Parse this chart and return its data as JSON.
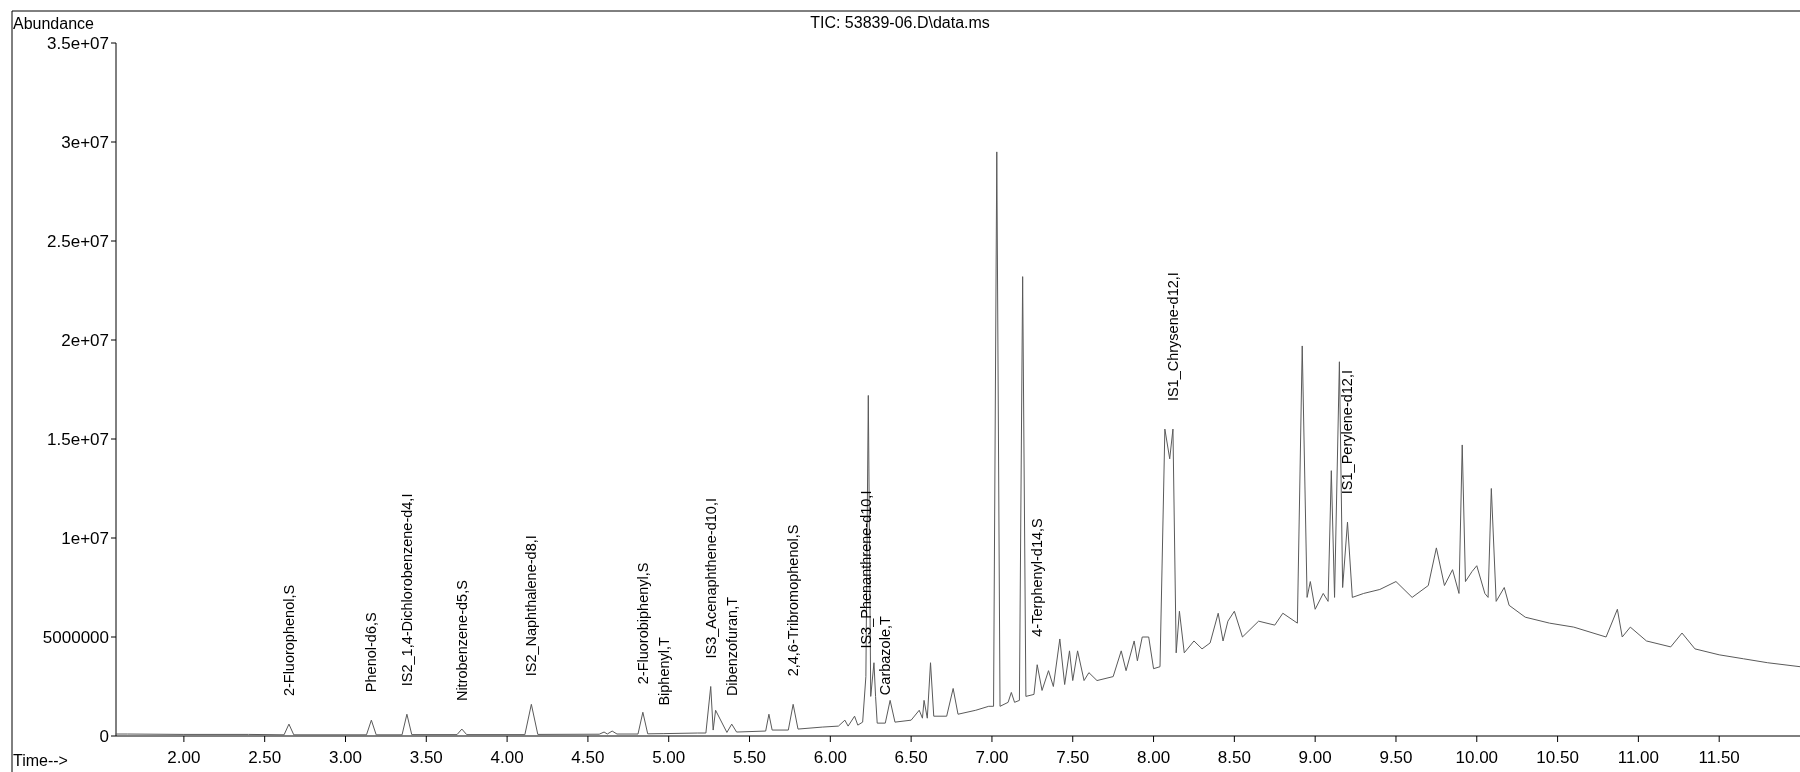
{
  "chart_data": {
    "type": "line",
    "title": "TIC: 53839-06.D\\data.ms",
    "xlabel": "Time-->",
    "ylabel": "Abundance",
    "xlim": [
      1.58,
      12.0
    ],
    "ylim": [
      0,
      35000000
    ],
    "xticks": [
      {
        "value": 2,
        "label": "2.00"
      },
      {
        "value": 2.5,
        "label": "2.50"
      },
      {
        "value": 3,
        "label": "3.00"
      },
      {
        "value": 3.5,
        "label": "3.50"
      },
      {
        "value": 4,
        "label": "4.00"
      },
      {
        "value": 4.5,
        "label": "4.50"
      },
      {
        "value": 5,
        "label": "5.00"
      },
      {
        "value": 5.5,
        "label": "5.50"
      },
      {
        "value": 6,
        "label": "6.00"
      },
      {
        "value": 6.5,
        "label": "6.50"
      },
      {
        "value": 7,
        "label": "7.00"
      },
      {
        "value": 7.5,
        "label": "7.50"
      },
      {
        "value": 8,
        "label": "8.00"
      },
      {
        "value": 8.5,
        "label": "8.50"
      },
      {
        "value": 9,
        "label": "9.00"
      },
      {
        "value": 9.5,
        "label": "9.50"
      },
      {
        "value": 10,
        "label": "10.00"
      },
      {
        "value": 10.5,
        "label": "10.50"
      },
      {
        "value": 11,
        "label": "11.00"
      },
      {
        "value": 11.5,
        "label": "11.50"
      }
    ],
    "yticks": [
      0,
      5000000,
      {
        "value": 10000000,
        "label": "1e+07"
      },
      {
        "value": 15000000,
        "label": "1.5e+07"
      },
      {
        "value": 20000000,
        "label": "2e+07"
      },
      {
        "value": 25000000,
        "label": "2.5e+07"
      },
      {
        "value": 30000000,
        "label": "3e+07"
      },
      {
        "value": 35000000,
        "label": "3.5e+07"
      }
    ],
    "grid": false,
    "marker": "none",
    "line_style": "solid",
    "annotations": [
      {
        "text": "2-Fluorophenol,S",
        "x": 2.65,
        "y": 600000
      },
      {
        "text": "Phenol-d6,S",
        "x": 3.16,
        "y": 800000
      },
      {
        "text": "IS2_1,4-Dichlorobenzene-d4,I",
        "x": 3.38,
        "y": 1100000
      },
      {
        "text": "Nitrobenzene-d5,S",
        "x": 3.72,
        "y": 350000
      },
      {
        "text": "IS2_Naphthalene-d8,I",
        "x": 4.15,
        "y": 1600000
      },
      {
        "text": "2-Fluorobiphenyl,S",
        "x": 4.84,
        "y": 1200000
      },
      {
        "text": "Biphenyl,T",
        "x": 4.97,
        "y": 120000
      },
      {
        "text": "IS3_Acenaphthene-d10,I",
        "x": 5.26,
        "y": 2500000
      },
      {
        "text": "Dibenzofuran,T",
        "x": 5.39,
        "y": 600000
      },
      {
        "text": "2,4,6-Tribromophenol,S",
        "x": 5.77,
        "y": 1600000
      },
      {
        "text": "IS3_Phenanthrene-d10,I",
        "x": 6.22,
        "y": 3000000
      },
      {
        "text": "Carbazole,T",
        "x": 6.34,
        "y": 650000
      },
      {
        "text": "4-Terphenyl-d14,S",
        "x": 7.28,
        "y": 3600000
      },
      {
        "text": "IS1_Chrysene-d12,I",
        "x": 8.12,
        "y": 15500000
      },
      {
        "text": "IS1_Perylene-d12,I",
        "x": 9.2,
        "y": 10800000
      }
    ],
    "series": [
      {
        "color": "#5a5a5a",
        "x": [
          1.58,
          1.65,
          2.0,
          2.4,
          2.62,
          2.65,
          2.68,
          3.13,
          3.16,
          3.19,
          3.35,
          3.38,
          3.41,
          3.69,
          3.72,
          3.75,
          4.11,
          4.15,
          4.19,
          4.57,
          4.6,
          4.62,
          4.65,
          4.68,
          4.81,
          4.84,
          4.87,
          4.97,
          5.18,
          5.23,
          5.26,
          5.275,
          5.29,
          5.36,
          5.39,
          5.42,
          5.6,
          5.62,
          5.64,
          5.74,
          5.77,
          5.8,
          5.95,
          6.05,
          6.09,
          6.11,
          6.15,
          6.17,
          6.2,
          6.22,
          6.235,
          6.25,
          6.27,
          6.28,
          6.29,
          6.34,
          6.37,
          6.4,
          6.5,
          6.55,
          6.57,
          6.58,
          6.6,
          6.62,
          6.64,
          6.72,
          6.76,
          6.79,
          6.9,
          6.98,
          7.01,
          7.03,
          7.05,
          7.1,
          7.12,
          7.14,
          7.17,
          7.19,
          7.21,
          7.26,
          7.28,
          7.31,
          7.35,
          7.38,
          7.42,
          7.45,
          7.48,
          7.5,
          7.53,
          7.57,
          7.6,
          7.65,
          7.75,
          7.8,
          7.83,
          7.88,
          7.9,
          7.93,
          7.97,
          8.0,
          8.04,
          8.07,
          8.1,
          8.12,
          8.14,
          8.16,
          8.19,
          8.25,
          8.3,
          8.35,
          8.4,
          8.43,
          8.46,
          8.5,
          8.55,
          8.65,
          8.75,
          8.8,
          8.89,
          8.92,
          8.95,
          8.97,
          9.0,
          9.05,
          9.08,
          9.1,
          9.12,
          9.15,
          9.17,
          9.2,
          9.23,
          9.3,
          9.4,
          9.5,
          9.6,
          9.7,
          9.75,
          9.8,
          9.85,
          9.89,
          9.91,
          9.93,
          9.97,
          10.0,
          10.05,
          10.07,
          10.09,
          10.12,
          10.17,
          10.2,
          10.3,
          10.45,
          10.6,
          10.8,
          10.87,
          10.9,
          10.95,
          11.05,
          11.2,
          11.27,
          11.35,
          11.5,
          11.65,
          11.8,
          12.0
        ],
        "values": [
          100000,
          100000,
          80000,
          80000,
          60000,
          600000,
          60000,
          60000,
          800000,
          60000,
          60000,
          1100000,
          70000,
          70000,
          350000,
          70000,
          70000,
          1600000,
          80000,
          90000,
          200000,
          100000,
          250000,
          100000,
          100000,
          1200000,
          110000,
          120000,
          150000,
          150000,
          2500000,
          300000,
          1300000,
          180000,
          600000,
          200000,
          250000,
          1100000,
          300000,
          300000,
          1600000,
          350000,
          450000,
          500000,
          800000,
          500000,
          1000000,
          550000,
          700000,
          3000000,
          17200000,
          2000000,
          3700000,
          2000000,
          650000,
          650000,
          1800000,
          700000,
          800000,
          1300000,
          900000,
          1800000,
          900000,
          3700000,
          1000000,
          1000000,
          2400000,
          1100000,
          1300000,
          1500000,
          1500000,
          29500000,
          1500000,
          1700000,
          2200000,
          1700000,
          1800000,
          23200000,
          2000000,
          2100000,
          3600000,
          2300000,
          3300000,
          2500000,
          4900000,
          2600000,
          4300000,
          2800000,
          4300000,
          2800000,
          3200000,
          2800000,
          3000000,
          4300000,
          3300000,
          4800000,
          3800000,
          5000000,
          5000000,
          3400000,
          3500000,
          15500000,
          14000000,
          15500000,
          4200000,
          6300000,
          4200000,
          4800000,
          4400000,
          4700000,
          6200000,
          4800000,
          5800000,
          6300000,
          5000000,
          5800000,
          5600000,
          6200000,
          5700000,
          19700000,
          7000000,
          7800000,
          6400000,
          7200000,
          6800000,
          13400000,
          7000000,
          18900000,
          7500000,
          10800000,
          7000000,
          7200000,
          7400000,
          7800000,
          7000000,
          7600000,
          9500000,
          7600000,
          8400000,
          7200000,
          14700000,
          7800000,
          8300000,
          8600000,
          7200000,
          7000000,
          12500000,
          6800000,
          7500000,
          6600000,
          6000000,
          5700000,
          5500000,
          5000000,
          6400000,
          5000000,
          5500000,
          4800000,
          4500000,
          5200000,
          4400000,
          4100000,
          3900000,
          3700000,
          3500000
        ]
      }
    ]
  }
}
